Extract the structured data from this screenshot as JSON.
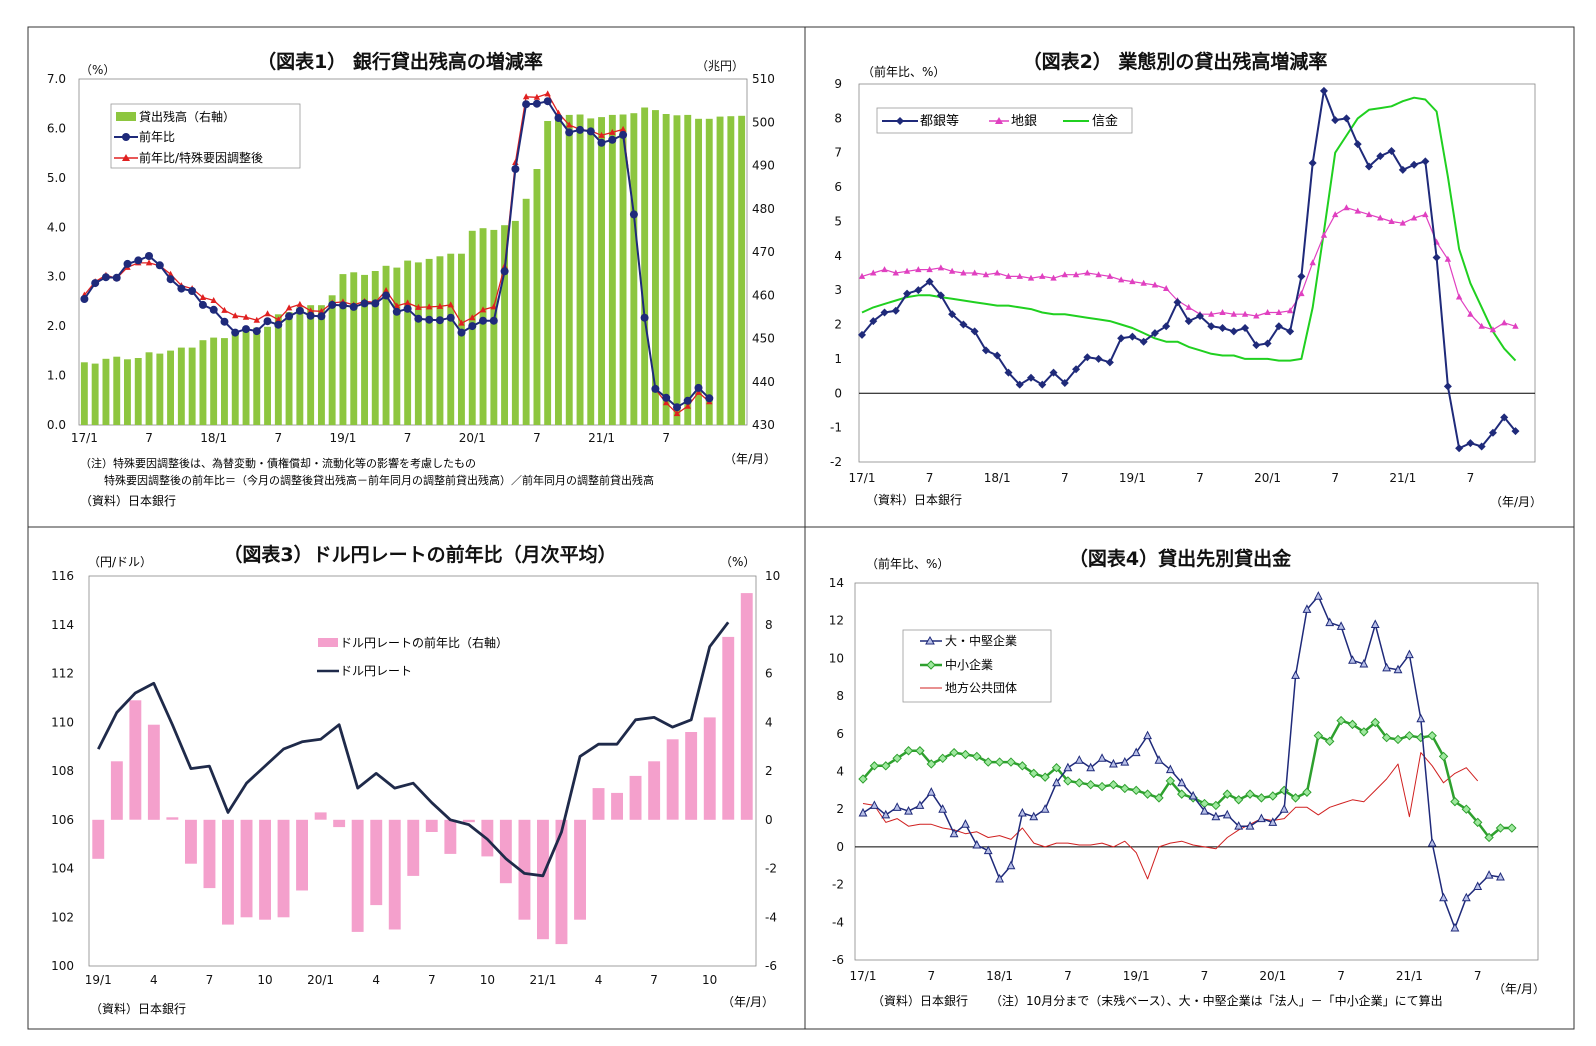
{
  "chart_data": [
    {
      "type": "bar+line",
      "title": "（図表1） 銀行貸出残高の増減率",
      "left_unit": "（%）",
      "right_unit": "（兆円）",
      "x_unit": "（年/月）",
      "left_axis": {
        "min": 0,
        "max": 7,
        "ticks": [
          "0.0",
          "1.0",
          "2.0",
          "3.0",
          "4.0",
          "5.0",
          "6.0",
          "7.0"
        ]
      },
      "right_axis": {
        "min": 430,
        "max": 510,
        "ticks": [
          "430",
          "440",
          "450",
          "460",
          "470",
          "480",
          "490",
          "500",
          "510"
        ]
      },
      "x_ticks": [
        {
          "i": 0,
          "label": "17/1"
        },
        {
          "i": 6,
          "label": "7"
        },
        {
          "i": 12,
          "label": "18/1"
        },
        {
          "i": 18,
          "label": "7"
        },
        {
          "i": 24,
          "label": "19/1"
        },
        {
          "i": 30,
          "label": "7"
        },
        {
          "i": 36,
          "label": "20/1"
        },
        {
          "i": 42,
          "label": "7"
        },
        {
          "i": 48,
          "label": "21/1"
        },
        {
          "i": 54,
          "label": "7"
        }
      ],
      "legend": [
        "貸出残高（右軸）",
        "前年比",
        "前年比/特殊要因調整後"
      ],
      "colors": {
        "bar": "#8dc63f",
        "yoy": "#1f2a7a",
        "adjusted": "#e02020"
      },
      "series_bar": [
        444.5,
        444.2,
        445.3,
        445.8,
        445.2,
        445.5,
        446.8,
        446.5,
        447.2,
        447.9,
        447.9,
        449.6,
        450.2,
        450.1,
        451.4,
        452.1,
        452.5,
        452.7,
        455.6,
        456.1,
        457.2,
        457.7,
        457.7,
        460.0,
        464.9,
        465.3,
        464.7,
        465.6,
        466.8,
        466.4,
        468.0,
        467.6,
        468.4,
        469.0,
        469.6,
        469.6,
        474.9,
        475.5,
        475.1,
        476.2,
        477.2,
        482.3,
        489.2,
        500.3,
        501.6,
        501.7,
        501.8,
        500.9,
        501.2,
        501.7,
        501.8,
        502.1,
        503.4,
        502.8,
        501.9,
        501.6,
        501.7,
        500.8,
        500.8,
        501.3,
        501.4,
        501.5
      ],
      "series_yoy": [
        2.55,
        2.87,
        2.99,
        2.98,
        3.26,
        3.33,
        3.42,
        3.23,
        2.95,
        2.76,
        2.71,
        2.43,
        2.33,
        2.09,
        1.87,
        1.94,
        1.9,
        2.1,
        2.03,
        2.2,
        2.31,
        2.21,
        2.2,
        2.43,
        2.42,
        2.39,
        2.46,
        2.46,
        2.62,
        2.29,
        2.35,
        2.15,
        2.13,
        2.12,
        2.17,
        1.87,
        2.0,
        2.11,
        2.11,
        3.11,
        5.18,
        6.49,
        6.5,
        6.55,
        6.21,
        5.92,
        5.97,
        5.94,
        5.71,
        5.77,
        5.87,
        4.26,
        2.17,
        0.73,
        0.55,
        0.36,
        0.49,
        0.75,
        0.54
      ],
      "series_adjusted": [
        2.63,
        2.9,
        3.03,
        2.97,
        3.19,
        3.28,
        3.28,
        3.22,
        3.05,
        2.82,
        2.76,
        2.58,
        2.52,
        2.32,
        2.21,
        2.18,
        2.12,
        2.25,
        2.13,
        2.37,
        2.44,
        2.31,
        2.3,
        2.47,
        2.49,
        2.43,
        2.5,
        2.48,
        2.72,
        2.41,
        2.47,
        2.38,
        2.39,
        2.4,
        2.43,
        2.06,
        2.17,
        2.33,
        2.39,
        3.21,
        5.31,
        6.64,
        6.63,
        6.7,
        6.31,
        6.07,
        5.98,
        5.95,
        5.86,
        5.92,
        5.98,
        4.25,
        2.17,
        0.72,
        0.45,
        0.23,
        0.38,
        0.66,
        0.47
      ],
      "notes": [
        "（注）特殊要因調整後は、為替変動・債権償却・流動化等の影響を考慮したもの",
        "特殊要因調整後の前年比＝（今月の調整後貸出残高－前年同月の調整前貸出残高）／前年同月の調整前貸出残高",
        "（資料）日本銀行"
      ]
    },
    {
      "type": "line",
      "title": "（図表2） 業態別の貸出残高増減率",
      "left_unit": "（前年比、%）",
      "x_unit": "（年/月）",
      "y_axis": {
        "min": -2,
        "max": 9,
        "ticks": [
          "-2",
          "-1",
          "0",
          "1",
          "2",
          "3",
          "4",
          "5",
          "6",
          "7",
          "8",
          "9"
        ]
      },
      "x_ticks": [
        {
          "i": 0,
          "label": "17/1"
        },
        {
          "i": 6,
          "label": "7"
        },
        {
          "i": 12,
          "label": "18/1"
        },
        {
          "i": 18,
          "label": "7"
        },
        {
          "i": 24,
          "label": "19/1"
        },
        {
          "i": 30,
          "label": "7"
        },
        {
          "i": 36,
          "label": "20/1"
        },
        {
          "i": 42,
          "label": "7"
        },
        {
          "i": 48,
          "label": "21/1"
        },
        {
          "i": 54,
          "label": "7"
        }
      ],
      "legend": [
        "都銀等",
        "地銀",
        "信金"
      ],
      "colors": {
        "city": "#1f2a7a",
        "regional": "#e040c0",
        "shinkin": "#20d020"
      },
      "series_city": [
        1.7,
        2.1,
        2.35,
        2.4,
        2.9,
        3.0,
        3.25,
        2.85,
        2.3,
        2.0,
        1.8,
        1.25,
        1.1,
        0.6,
        0.25,
        0.45,
        0.25,
        0.6,
        0.3,
        0.7,
        1.05,
        1.0,
        0.9,
        1.6,
        1.65,
        1.5,
        1.75,
        1.95,
        2.65,
        2.1,
        2.25,
        1.95,
        1.9,
        1.8,
        1.9,
        1.4,
        1.45,
        1.95,
        1.8,
        3.4,
        6.7,
        8.8,
        7.95,
        8.0,
        7.25,
        6.6,
        6.9,
        7.05,
        6.5,
        6.65,
        6.75,
        3.95,
        0.2,
        -1.6,
        -1.45,
        -1.55,
        -1.15,
        -0.7,
        -1.1
      ],
      "series_regional": [
        3.4,
        3.5,
        3.6,
        3.5,
        3.55,
        3.6,
        3.6,
        3.65,
        3.55,
        3.5,
        3.5,
        3.45,
        3.5,
        3.4,
        3.4,
        3.35,
        3.4,
        3.35,
        3.45,
        3.45,
        3.5,
        3.45,
        3.4,
        3.3,
        3.25,
        3.2,
        3.15,
        3.05,
        2.7,
        2.5,
        2.3,
        2.3,
        2.35,
        2.3,
        2.3,
        2.25,
        2.35,
        2.35,
        2.4,
        2.9,
        3.8,
        4.6,
        5.2,
        5.4,
        5.3,
        5.2,
        5.1,
        5.0,
        4.95,
        5.1,
        5.2,
        4.4,
        3.9,
        2.8,
        2.3,
        1.95,
        1.85,
        2.05,
        1.95
      ],
      "series_shinkin": [
        2.35,
        2.5,
        2.6,
        2.7,
        2.8,
        2.85,
        2.85,
        2.8,
        2.75,
        2.7,
        2.65,
        2.6,
        2.55,
        2.55,
        2.5,
        2.45,
        2.35,
        2.3,
        2.3,
        2.25,
        2.2,
        2.15,
        2.1,
        2.0,
        1.9,
        1.75,
        1.6,
        1.5,
        1.5,
        1.35,
        1.25,
        1.15,
        1.1,
        1.1,
        1.0,
        1.0,
        1.0,
        0.95,
        0.95,
        1.0,
        2.5,
        4.7,
        7.0,
        7.5,
        8.0,
        8.25,
        8.3,
        8.35,
        8.5,
        8.6,
        8.55,
        8.2,
        6.3,
        4.2,
        3.2,
        2.5,
        1.8,
        1.3,
        0.95
      ]
    },
    {
      "type": "bar+line",
      "title": "（図表3）ドル円レートの前年比（月次平均）",
      "left_unit": "（円/ドル）",
      "right_unit": "（%）",
      "x_unit": "（年/月）",
      "left_axis": {
        "min": 100,
        "max": 116,
        "ticks": [
          "100",
          "102",
          "104",
          "106",
          "108",
          "110",
          "112",
          "114",
          "116"
        ]
      },
      "right_axis": {
        "min": -6,
        "max": 10,
        "ticks": [
          "-6",
          "-4",
          "-2",
          "0",
          "2",
          "4",
          "6",
          "8",
          "10"
        ]
      },
      "x_ticks": [
        {
          "i": 0,
          "label": "19/1"
        },
        {
          "i": 3,
          "label": "4"
        },
        {
          "i": 6,
          "label": "7"
        },
        {
          "i": 9,
          "label": "10"
        },
        {
          "i": 12,
          "label": "20/1"
        },
        {
          "i": 15,
          "label": "4"
        },
        {
          "i": 18,
          "label": "7"
        },
        {
          "i": 21,
          "label": "10"
        },
        {
          "i": 24,
          "label": "21/1"
        },
        {
          "i": 27,
          "label": "4"
        },
        {
          "i": 30,
          "label": "7"
        },
        {
          "i": 33,
          "label": "10"
        }
      ],
      "legend": [
        "ドル円レートの前年比（右軸）",
        "ドル円レート"
      ],
      "colors": {
        "bar": "#f4a0cc",
        "line": "#1f2a4a"
      },
      "series_bar": [
        -1.6,
        2.4,
        4.9,
        3.9,
        0.1,
        -1.8,
        -2.8,
        -4.3,
        -4.0,
        -4.1,
        -4.0,
        -2.9,
        0.3,
        -0.3,
        -4.6,
        -3.5,
        -4.5,
        -2.3,
        -0.5,
        -1.4,
        -0.1,
        -1.5,
        -2.6,
        -4.1,
        -4.9,
        -5.1,
        -4.1,
        1.3,
        1.1,
        1.8,
        2.4,
        3.3,
        3.6,
        4.2,
        7.5,
        9.3
      ],
      "series_line": [
        108.9,
        110.4,
        111.2,
        111.6,
        109.9,
        108.1,
        108.2,
        106.3,
        107.5,
        108.2,
        108.9,
        109.2,
        109.3,
        109.9,
        107.3,
        107.9,
        107.3,
        107.5,
        106.7,
        106.0,
        105.8,
        105.2,
        104.4,
        103.8,
        103.7,
        105.5,
        108.6,
        109.1,
        109.1,
        110.1,
        110.2,
        109.8,
        110.1,
        113.1,
        114.1
      ],
      "notes": [
        "（資料）日本銀行"
      ]
    },
    {
      "type": "line",
      "title": "（図表4）貸出先別貸出金",
      "left_unit": "（前年比、%）",
      "x_unit": "（年/月）",
      "y_axis": {
        "min": -6,
        "max": 14,
        "ticks": [
          "-6",
          "-4",
          "-2",
          "0",
          "2",
          "4",
          "6",
          "8",
          "10",
          "12",
          "14"
        ]
      },
      "x_ticks": [
        {
          "i": 0,
          "label": "17/1"
        },
        {
          "i": 6,
          "label": "7"
        },
        {
          "i": 12,
          "label": "18/1"
        },
        {
          "i": 18,
          "label": "7"
        },
        {
          "i": 24,
          "label": "19/1"
        },
        {
          "i": 30,
          "label": "7"
        },
        {
          "i": 36,
          "label": "20/1"
        },
        {
          "i": 42,
          "label": "7"
        },
        {
          "i": 48,
          "label": "21/1"
        },
        {
          "i": 54,
          "label": "7"
        }
      ],
      "legend": [
        "大・中堅企業",
        "中小企業",
        "地方公共団体"
      ],
      "colors": {
        "large": "#1f2a7a",
        "sme": "#2ea02e",
        "local": "#d02020"
      },
      "series_large": [
        1.8,
        2.2,
        1.7,
        2.1,
        1.9,
        2.2,
        2.9,
        2.0,
        0.7,
        1.2,
        0.1,
        -0.2,
        -1.7,
        -1.0,
        1.8,
        1.6,
        2.0,
        3.4,
        4.2,
        4.6,
        4.2,
        4.7,
        4.4,
        4.5,
        5.0,
        5.9,
        4.6,
        4.1,
        3.4,
        2.7,
        1.9,
        1.6,
        1.7,
        1.1,
        1.1,
        1.5,
        1.3,
        2.0,
        9.1,
        12.6,
        13.3,
        11.9,
        11.7,
        9.9,
        9.7,
        11.8,
        9.5,
        9.4,
        10.2,
        6.8,
        0.2,
        -2.7,
        -4.3,
        -2.7,
        -2.1,
        -1.5,
        -1.6
      ],
      "series_sme": [
        3.6,
        4.3,
        4.3,
        4.7,
        5.1,
        5.1,
        4.4,
        4.7,
        5.0,
        4.9,
        4.8,
        4.5,
        4.5,
        4.5,
        4.3,
        3.9,
        3.7,
        4.2,
        3.5,
        3.4,
        3.3,
        3.2,
        3.3,
        3.1,
        3.0,
        2.8,
        2.6,
        3.5,
        2.8,
        2.6,
        2.3,
        2.2,
        2.8,
        2.5,
        2.8,
        2.6,
        2.7,
        3.0,
        2.6,
        2.9,
        5.9,
        5.6,
        6.7,
        6.5,
        6.1,
        6.6,
        5.8,
        5.7,
        5.9,
        5.8,
        5.9,
        4.8,
        2.4,
        2.0,
        1.3,
        0.5,
        1.0,
        1.0
      ],
      "series_local": [
        2.3,
        2.2,
        1.3,
        1.5,
        1.1,
        1.2,
        1.2,
        1.0,
        0.9,
        0.7,
        0.8,
        0.5,
        0.6,
        0.4,
        1.0,
        0.2,
        0.0,
        0.2,
        0.2,
        0.1,
        0.1,
        0.2,
        0.0,
        0.3,
        -0.3,
        -1.7,
        0.0,
        0.2,
        0.3,
        0.1,
        0.0,
        -0.1,
        0.5,
        0.9,
        1.2,
        1.5,
        1.4,
        1.5,
        2.1,
        2.1,
        1.7,
        2.1,
        2.3,
        2.5,
        2.4,
        3.0,
        3.6,
        4.4,
        1.6,
        5.0,
        4.3,
        3.4,
        3.9,
        4.2,
        3.5
      ],
      "notes": [
        "（資料）日本銀行",
        "（注）10月分まで（末残ベース）、大・中堅企業は「法人」－「中小企業」にて算出"
      ]
    }
  ]
}
